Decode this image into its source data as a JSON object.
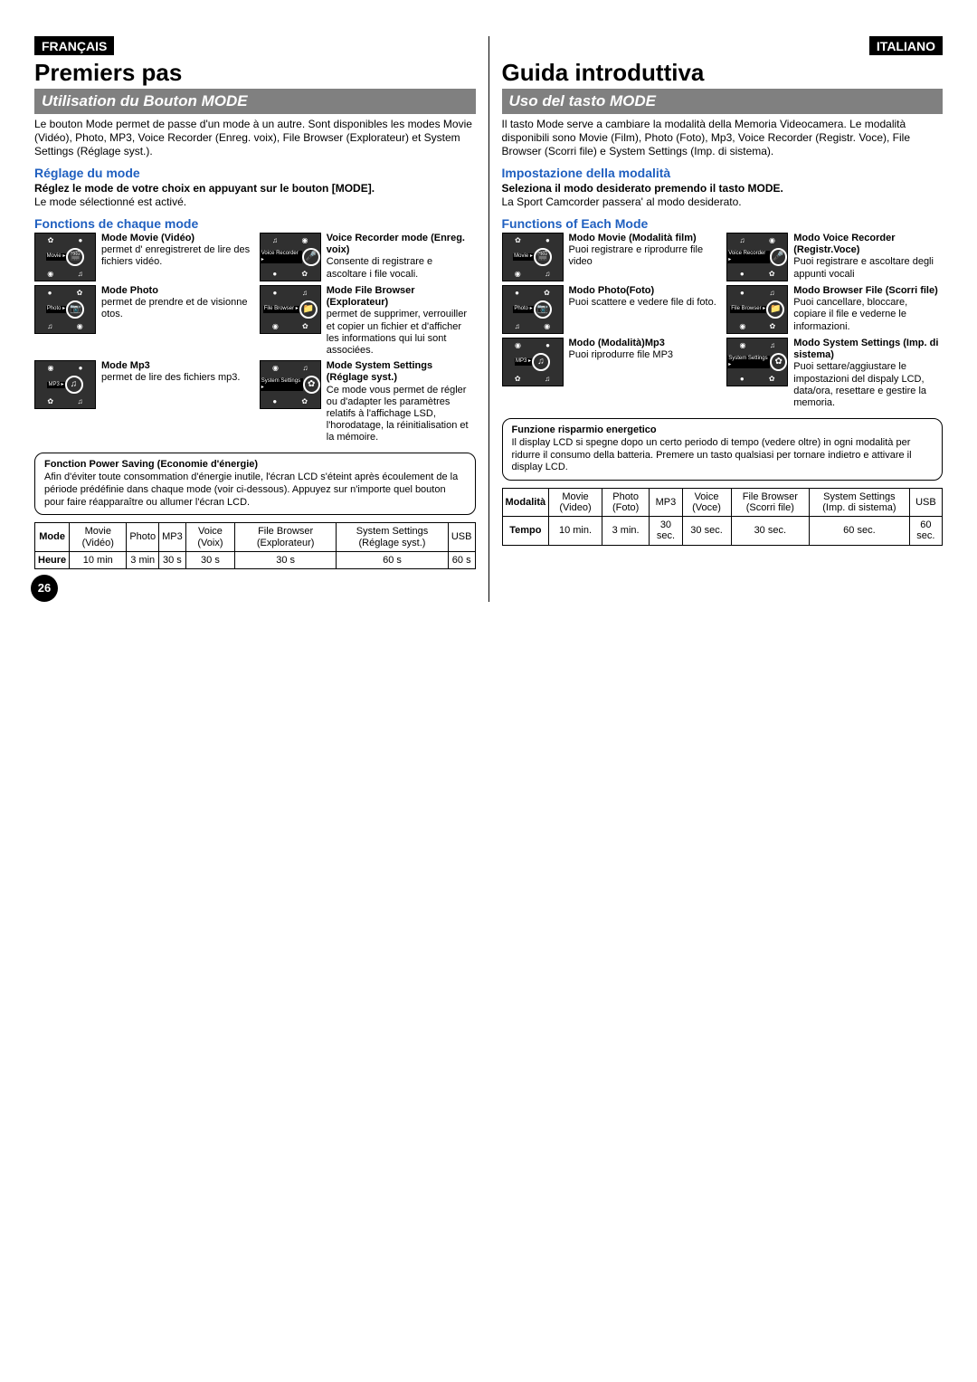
{
  "pageNumber": "26",
  "left": {
    "lang": "FRANÇAIS",
    "chapter": "Premiers pas",
    "section": "Utilisation du Bouton MODE",
    "intro": "Le bouton Mode permet de passe d'un mode à un autre. Sont disponibles les modes Movie (Vidéo), Photo, MP3, Voice Recorder (Enreg. voix), File Browser (Explorateur) et System Settings (Réglage syst.).",
    "settingH": "Réglage du mode",
    "settingBold": "Réglez le mode de votre choix en appuyant sur le bouton [MODE].",
    "settingBody": "Le mode sélectionné est activé.",
    "funcH": "Fonctions de chaque mode",
    "modes": [
      {
        "label": "Movie ▸",
        "title": "Mode Movie (Vidéo)",
        "desc": "permet d' enregistreret de lire des fichiers vidéo."
      },
      {
        "label": "Voice Recorder ▸",
        "title": "Voice Recorder mode (Enreg. voix)",
        "desc": "Consente di registrare e ascoltare i file vocali."
      },
      {
        "label": "Photo ▸",
        "title": "Mode Photo",
        "desc": "permet de prendre et de visionne otos."
      },
      {
        "label": "File Browser ▸",
        "title": "Mode File Browser (Explorateur)",
        "desc": "permet de supprimer, verrouiller et copier un fichier et d'afficher les informations qui lui sont associées."
      },
      {
        "label": "MP3 ▸",
        "title": "Mode Mp3",
        "desc": "permet de lire des fichiers mp3."
      },
      {
        "label": "System Settings ▸",
        "title": "Mode System Settings (Réglage syst.)",
        "desc": "Ce mode vous permet de régler ou d'adapter les paramètres relatifs à l'affichage LSD, l'horodatage, la réinitialisation et la mémoire."
      }
    ],
    "noteTitle": "Fonction Power Saving (Economie d'énergie)",
    "noteBody": "Afin d'éviter toute consommation d'énergie inutile, l'écran LCD s'éteint après écoulement de la période prédéfinie dans chaque mode (voir ci-dessous). Appuyez sur n'importe quel bouton pour faire réapparaître ou allumer l'écran LCD.",
    "table": {
      "head": [
        "Mode",
        "Movie (Vidéo)",
        "Photo",
        "MP3",
        "Voice (Voix)",
        "File Browser (Explorateur)",
        "System Settings (Réglage syst.)",
        "USB"
      ],
      "rowLabel": "Heure",
      "row": [
        "10 min",
        "3 min",
        "30 s",
        "30 s",
        "30 s",
        "60 s",
        "60 s"
      ]
    }
  },
  "right": {
    "lang": "ITALIANO",
    "chapter": "Guida introduttiva",
    "section": "Uso del tasto MODE",
    "intro": "Il tasto Mode serve a cambiare la modalità della Memoria Videocamera. Le modalità disponibili sono Movie (Film), Photo (Foto), Mp3, Voice Recorder (Registr. Voce), File Browser (Scorri file) e System Settings (Imp. di sistema).",
    "settingH": "Impostazione della modalità",
    "settingBold": "Seleziona il modo desiderato premendo il tasto MODE.",
    "settingBody": "La Sport Camcorder passera' al modo desiderato.",
    "funcH": "Functions of Each Mode",
    "modes": [
      {
        "label": "Movie ▸",
        "title": "Modo Movie (Modalità film)",
        "desc": "Puoi registrare e riprodurre file video"
      },
      {
        "label": "Voice Recorder ▸",
        "title": "Modo Voice Recorder (Registr.Voce)",
        "desc": "Puoi registrare e ascoltare degli appunti vocali"
      },
      {
        "label": "Photo ▸",
        "title": "Modo Photo(Foto)",
        "desc": "Puoi scattere e vedere file di foto."
      },
      {
        "label": "File Browser ▸",
        "title": "Modo Browser File (Scorri file)",
        "desc": "Puoi cancellare, bloccare, copiare il file e vederne le informazioni."
      },
      {
        "label": "MP3 ▸",
        "title": "Modo (Modalità)Mp3",
        "desc": "Puoi riprodurre file MP3"
      },
      {
        "label": "System Settings ▸",
        "title": "Modo System Settings (Imp. di sistema)",
        "desc": "Puoi settare/aggiustare le impostazioni del dispaly LCD, data/ora, resettare e gestire la memoria."
      }
    ],
    "noteTitle": "Funzione risparmio energetico",
    "noteBody": "Il display LCD si spegne dopo un certo periodo di tempo (vedere oltre) in ogni modalità per ridurre il consumo della batteria. Premere un tasto qualsiasi per tornare indietro e attivare il display LCD.",
    "table": {
      "head": [
        "Modalità",
        "Movie (Video)",
        "Photo (Foto)",
        "MP3",
        "Voice (Voce)",
        "File Browser (Scorri file)",
        "System Settings (Imp. di sistema)",
        "USB"
      ],
      "rowLabel": "Tempo",
      "row": [
        "10 min.",
        "3 min.",
        "30 sec.",
        "30 sec.",
        "30 sec.",
        "60 sec.",
        "60 sec."
      ]
    }
  },
  "thumbIcons": {
    "top": [
      "✿",
      "●"
    ],
    "bottom": [
      "◉",
      "♫"
    ],
    "centers": [
      "🎬",
      "🎤",
      "📷",
      "📁",
      "♫",
      "✿"
    ]
  }
}
